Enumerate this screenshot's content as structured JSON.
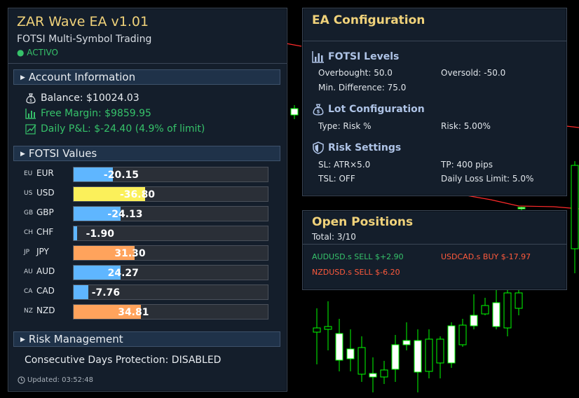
{
  "colors": {
    "gold": "#f0d27a",
    "green": "#36c26a",
    "red": "#ff5a3c",
    "blue_bar": "#5fb6ff",
    "yellow_bar": "#fbf05a",
    "orange_bar": "#ffa35c"
  },
  "header": {
    "title": "ZAR Wave EA v1.01",
    "subtitle": "FOTSI Multi-Symbol Trading",
    "status": "● ACTIVO"
  },
  "account": {
    "section_label": "Account Information",
    "balance": "Balance: $10024.03",
    "free_margin": "Free Margin: $9859.95",
    "daily_pnl": "Daily P&L: $-24.40 (4.9% of limit)",
    "icons": [
      "money-bag-icon",
      "bar-chart-icon",
      "checkbox-trend-icon"
    ]
  },
  "fotsi": {
    "section_label": "FOTSI Values",
    "rows": [
      {
        "code": "EU",
        "currency": "EUR",
        "value": -20.15,
        "value_text": "-20.15",
        "color": "#5fb6ff"
      },
      {
        "code": "US",
        "currency": "USD",
        "value": -36.8,
        "value_text": "-36.80",
        "color": "#fbf05a"
      },
      {
        "code": "GB",
        "currency": "GBP",
        "value": -24.13,
        "value_text": "-24.13",
        "color": "#5fb6ff"
      },
      {
        "code": "CH",
        "currency": "CHF",
        "value": -1.9,
        "value_text": "-1.90",
        "color": "#5fb6ff"
      },
      {
        "code": "JP",
        "currency": "JPY",
        "value": 31.3,
        "value_text": "31.30",
        "color": "#ffa35c"
      },
      {
        "code": "AU",
        "currency": "AUD",
        "value": 24.27,
        "value_text": "24.27",
        "color": "#5fb6ff"
      },
      {
        "code": "CA",
        "currency": "CAD",
        "value": -7.76,
        "value_text": "-7.76",
        "color": "#5fb6ff"
      },
      {
        "code": "NZ",
        "currency": "NZD",
        "value": 34.81,
        "value_text": "34.81",
        "color": "#ffa35c"
      }
    ]
  },
  "risk": {
    "section_label": "Risk Management",
    "protection": "Consecutive Days Protection: DISABLED",
    "updated": "Updated: 03:52:48"
  },
  "config": {
    "title": "EA Configuration",
    "fotsi_levels": {
      "label": "FOTSI Levels",
      "overbought": "Overbought: 50.0",
      "oversold": "Oversold: -50.0",
      "min_diff": "Min. Difference: 75.0"
    },
    "lot": {
      "label": "Lot Configuration",
      "type": "Type: Risk %",
      "risk": "Risk: 5.00%"
    },
    "risk_settings": {
      "label": "Risk Settings",
      "sl": "SL: ATR×5.0",
      "tp": "TP: 400 pips",
      "tsl": "TSL: OFF",
      "daily_loss": "Daily Loss Limit: 5.0%"
    }
  },
  "positions": {
    "title": "Open Positions",
    "total": "Total: 3/10",
    "items": [
      {
        "text": "AUDUSD.s SELL $+2.90",
        "color": "#36c26a"
      },
      {
        "text": "USDCAD.s BUY $-17.97",
        "color": "#ff5a3c"
      },
      {
        "text": "NZDUSD.s SELL $-6.20",
        "color": "#ff5a3c"
      }
    ]
  }
}
